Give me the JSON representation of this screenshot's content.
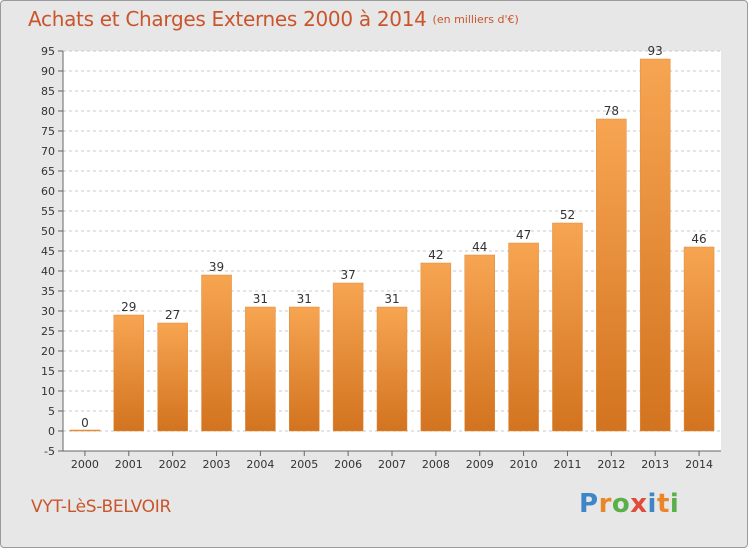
{
  "header": {
    "title": "Achats et Charges Externes 2000 à 2014",
    "unit": "(en milliers d'€)"
  },
  "footer": {
    "commune": "VYT-LèS-BELVOIR",
    "logo_letters": [
      {
        "ch": "P",
        "color": "#3f86c8"
      },
      {
        "ch": "r",
        "color": "#e9862a"
      },
      {
        "ch": "o",
        "color": "#59b04a"
      },
      {
        "ch": "x",
        "color": "#e24a3a"
      },
      {
        "ch": "i",
        "color": "#3f86c8"
      },
      {
        "ch": "t",
        "color": "#e9862a"
      },
      {
        "ch": "i",
        "color": "#59b04a"
      }
    ]
  },
  "colors": {
    "bar_top": "#f7a552",
    "bar_bottom": "#d2731f",
    "bar_stroke": "#e08a3a",
    "grid": "#c8c8c8",
    "text": "#333333",
    "accent": "#c9552c"
  },
  "chart_data": {
    "type": "bar",
    "title": "Achats et Charges Externes 2000 à 2014",
    "xlabel": "",
    "ylabel": "",
    "categories": [
      "2000",
      "2001",
      "2002",
      "2003",
      "2004",
      "2005",
      "2006",
      "2007",
      "2008",
      "2009",
      "2010",
      "2011",
      "2012",
      "2013",
      "2014"
    ],
    "values": [
      0,
      29,
      27,
      39,
      31,
      31,
      37,
      31,
      42,
      44,
      47,
      52,
      78,
      93,
      46
    ],
    "ylim": [
      -5,
      95
    ],
    "yticks": [
      -5,
      0,
      5,
      10,
      15,
      20,
      25,
      30,
      35,
      40,
      45,
      50,
      55,
      60,
      65,
      70,
      75,
      80,
      85,
      90,
      95
    ],
    "grid": true,
    "data_labels": true
  }
}
